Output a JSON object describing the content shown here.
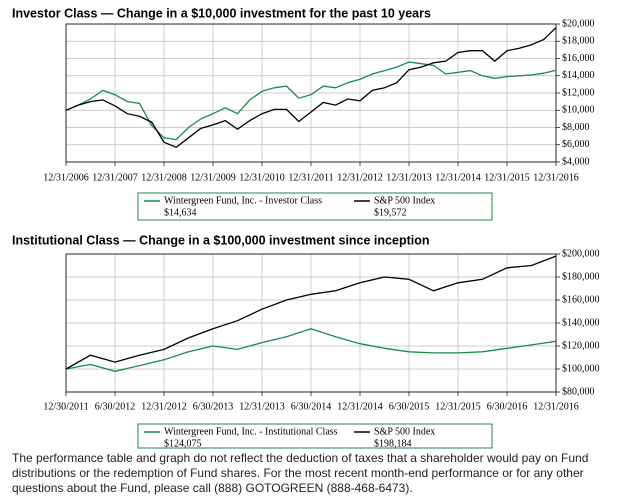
{
  "chart_data": [
    {
      "type": "line",
      "title": "Investor Class — Change in a $10,000 investment for the past 10 years",
      "categories": [
        "12/31/2006",
        null,
        null,
        null,
        "12/31/2007",
        null,
        null,
        null,
        "12/31/2008",
        null,
        null,
        null,
        "12/31/2009",
        null,
        null,
        null,
        "12/31/2010",
        null,
        null,
        null,
        "12/31/2011",
        null,
        null,
        null,
        "12/31/2012",
        null,
        null,
        null,
        "12/31/2013",
        null,
        null,
        null,
        "12/31/2014",
        null,
        null,
        null,
        "12/31/2015",
        null,
        null,
        null,
        "12/31/2016"
      ],
      "series": [
        {
          "name": "Wintergreen Fund, Inc. - Investor Class",
          "color": "#1a8a4a",
          "values": [
            10000,
            10600,
            11300,
            12300,
            11800,
            11000,
            10800,
            8200,
            6800,
            6600,
            8000,
            9000,
            9600,
            10300,
            9600,
            11200,
            12200,
            12600,
            12800,
            11400,
            11800,
            12800,
            12600,
            13200,
            13600,
            14200,
            14600,
            15000,
            15600,
            15400,
            15200,
            14200,
            14400,
            14600,
            14000,
            13700,
            13900,
            14000,
            14100,
            14300,
            14634
          ],
          "value_labels": [
            null,
            null,
            null,
            null,
            null,
            null,
            null,
            null,
            null,
            null,
            null,
            null,
            null,
            null,
            null,
            null,
            null,
            null,
            null,
            null,
            null,
            null,
            null,
            null,
            null,
            null,
            null,
            null,
            null,
            null,
            null,
            null,
            null,
            null,
            null,
            null,
            null,
            null,
            null,
            null,
            "$14,634"
          ]
        },
        {
          "name": "S&P 500 Index",
          "color": "#000000",
          "values": [
            10000,
            10600,
            11000,
            11200,
            10500,
            9600,
            9300,
            8600,
            6300,
            5700,
            6800,
            7900,
            8300,
            8800,
            7800,
            8800,
            9600,
            10100,
            10100,
            8700,
            9800,
            10900,
            10600,
            11300,
            11100,
            12300,
            12600,
            13200,
            14700,
            15000,
            15500,
            15700,
            16700,
            16900,
            16900,
            15700,
            16900,
            17200,
            17600,
            18200,
            19572
          ],
          "value_labels": [
            null,
            null,
            null,
            null,
            null,
            null,
            null,
            null,
            null,
            null,
            null,
            null,
            null,
            null,
            null,
            null,
            null,
            null,
            null,
            null,
            null,
            null,
            null,
            null,
            null,
            null,
            null,
            null,
            null,
            null,
            null,
            null,
            null,
            null,
            null,
            null,
            null,
            null,
            null,
            null,
            "$19,572"
          ]
        }
      ],
      "ylim": [
        4000,
        20000
      ],
      "yticks": [
        {
          "value": 4000,
          "label": "$4,000"
        },
        {
          "value": 6000,
          "label": "$6,000"
        },
        {
          "value": 8000,
          "label": "$8,000"
        },
        {
          "value": 10000,
          "label": "$10,000"
        },
        {
          "value": 12000,
          "label": "$12,000"
        },
        {
          "value": 14000,
          "label": "$14,000"
        },
        {
          "value": 16000,
          "label": "$16,000"
        },
        {
          "value": 18000,
          "label": "$18,000"
        },
        {
          "value": 20000,
          "label": "$20,000"
        }
      ],
      "grid": true
    },
    {
      "type": "line",
      "title": "Institutional Class — Change in a $100,000 investment since inception",
      "categories": [
        "12/30/2011",
        null,
        "6/30/2012",
        null,
        "12/31/2012",
        null,
        "6/30/2013",
        null,
        "12/31/2013",
        null,
        "6/30/2014",
        null,
        "12/31/2014",
        null,
        "6/30/2015",
        null,
        "12/31/2015",
        null,
        "6/30/2016",
        null,
        "12/31/2016"
      ],
      "series": [
        {
          "name": "Wintergreen Fund, Inc. - Institutional Class",
          "color": "#1a8a4a",
          "values": [
            100000,
            104000,
            98000,
            103000,
            108000,
            115000,
            120000,
            117000,
            123000,
            128000,
            135000,
            128000,
            122000,
            118000,
            115000,
            114000,
            114000,
            115000,
            118000,
            121000,
            124075
          ],
          "value_labels": [
            null,
            null,
            null,
            null,
            null,
            null,
            null,
            null,
            null,
            null,
            null,
            null,
            null,
            null,
            null,
            null,
            null,
            null,
            null,
            null,
            "$124,075"
          ]
        },
        {
          "name": "S&P 500 Index",
          "color": "#000000",
          "values": [
            100000,
            112000,
            106000,
            112000,
            117000,
            127000,
            135000,
            142000,
            152000,
            160000,
            165000,
            168000,
            175000,
            180000,
            178000,
            168000,
            175000,
            178000,
            188000,
            190000,
            198184
          ],
          "value_labels": [
            null,
            null,
            null,
            null,
            null,
            null,
            null,
            null,
            null,
            null,
            null,
            null,
            null,
            null,
            null,
            null,
            null,
            null,
            null,
            null,
            "$198,184"
          ]
        }
      ],
      "ylim": [
        80000,
        200000
      ],
      "yticks": [
        {
          "value": 80000,
          "label": "$80,000"
        },
        {
          "value": 100000,
          "label": "$100,000"
        },
        {
          "value": 120000,
          "label": "$120,000"
        },
        {
          "value": 140000,
          "label": "$140,000"
        },
        {
          "value": 160000,
          "label": "$160,000"
        },
        {
          "value": 180000,
          "label": "$180,000"
        },
        {
          "value": 200000,
          "label": "$200,000"
        }
      ],
      "grid": true
    }
  ],
  "footnote": "The performance table and graph do not reflect the deduction of taxes that a shareholder would pay on Fund distributions or the redemption of Fund shares. For the most recent month-end performance or for any other questions about the Fund, please call (888) GOTOGREEN (888-468-6473)."
}
